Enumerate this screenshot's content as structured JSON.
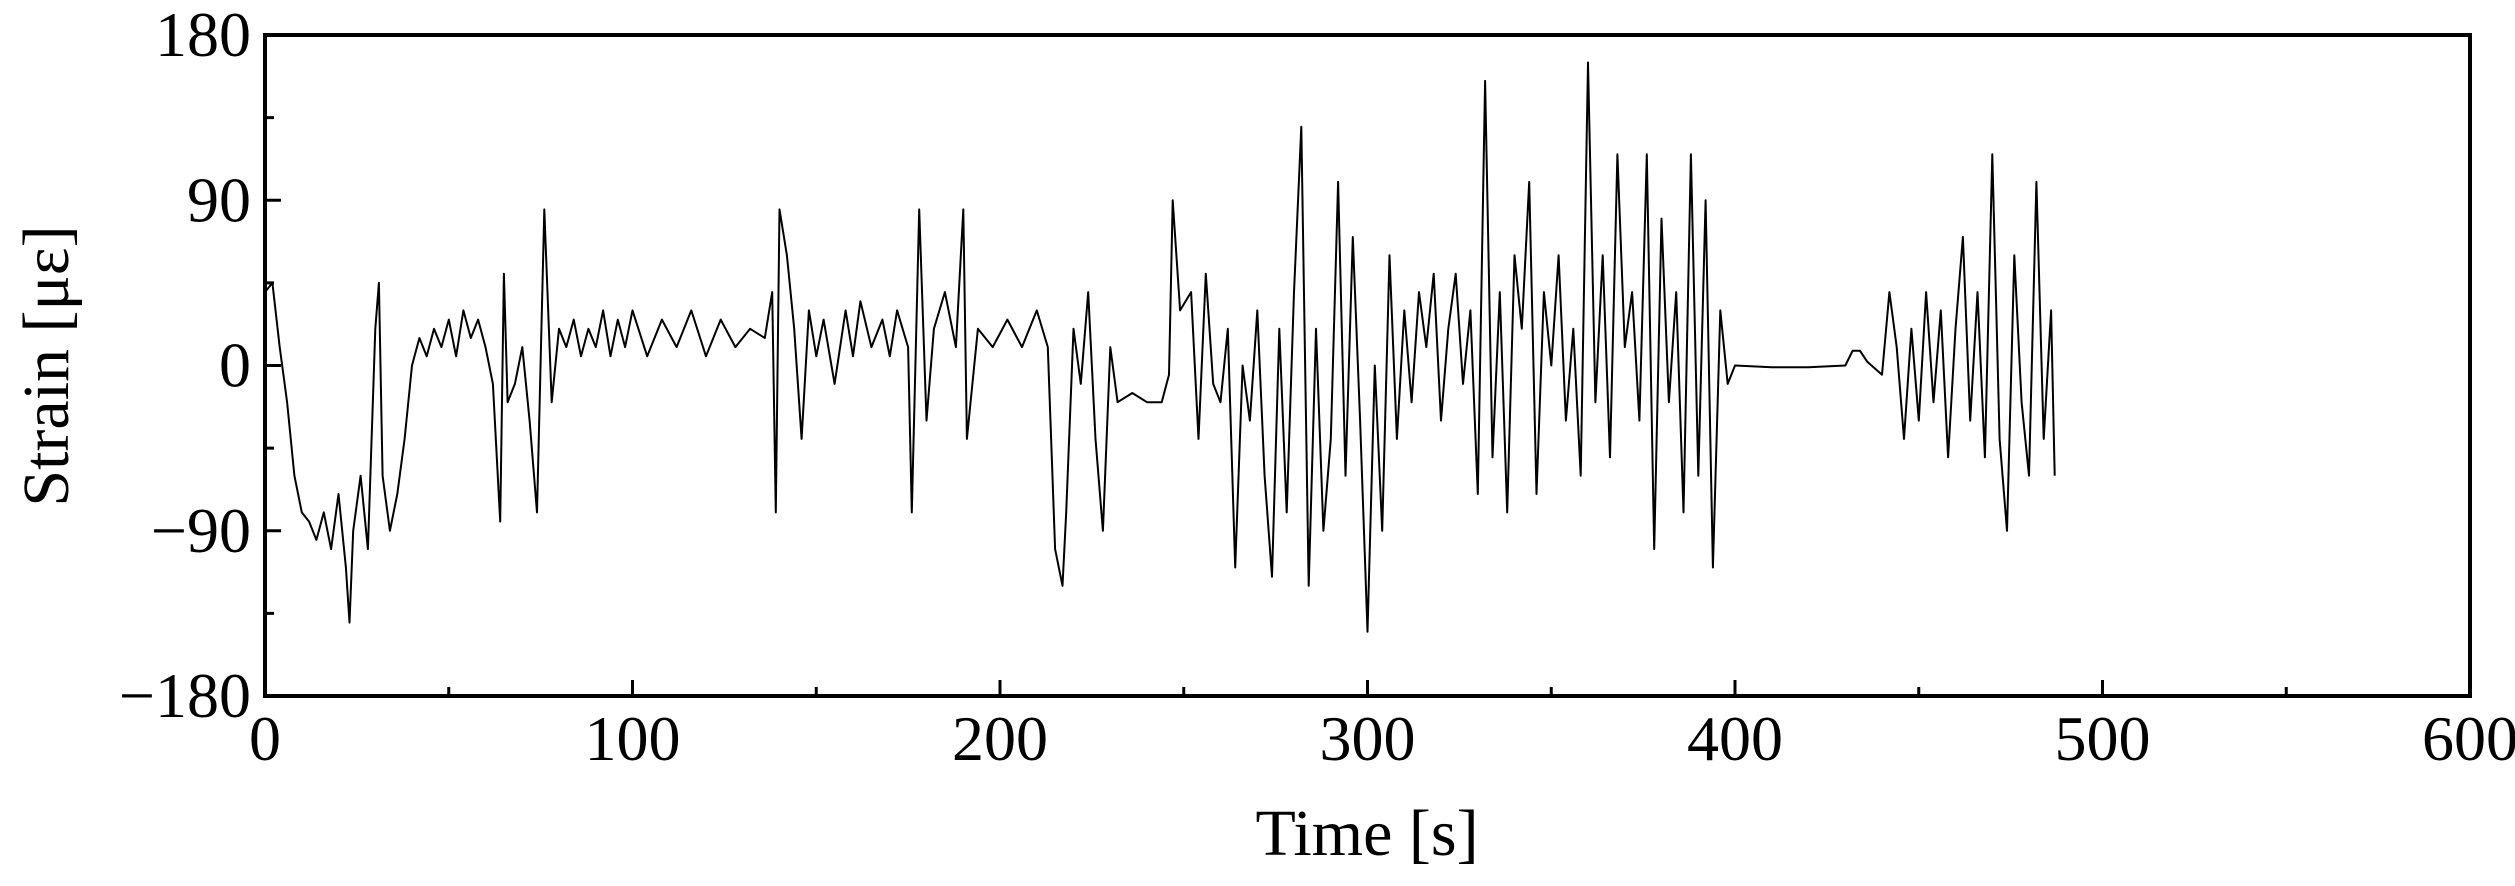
{
  "chart_data": {
    "type": "line",
    "xlabel": "Time [s]",
    "ylabel": "Strain [με]",
    "xlim": [
      0,
      600
    ],
    "xticks": [
      0,
      100,
      200,
      300,
      400,
      500,
      600
    ],
    "ylim": [
      -180,
      180
    ],
    "yticks": [
      {
        "value": -180,
        "label": "−180"
      },
      {
        "value": -90,
        "label": "−90"
      },
      0,
      90,
      180
    ],
    "grid": false,
    "x": [
      0,
      2,
      4,
      6,
      8,
      10,
      12,
      14,
      16,
      18,
      20,
      22,
      23,
      24,
      26,
      28,
      30,
      31,
      32,
      34,
      36,
      38,
      40,
      42,
      44,
      46,
      48,
      50,
      52,
      54,
      56,
      58,
      60,
      62,
      64,
      65,
      66,
      68,
      70,
      72,
      74,
      76,
      78,
      80,
      82,
      84,
      86,
      88,
      90,
      92,
      94,
      96,
      98,
      100,
      104,
      108,
      112,
      116,
      120,
      124,
      128,
      132,
      136,
      138,
      139,
      140,
      142,
      144,
      146,
      148,
      150,
      152,
      155,
      158,
      160,
      162,
      165,
      168,
      170,
      172,
      175,
      176,
      178,
      180,
      182,
      185,
      188,
      190,
      191,
      194,
      198,
      202,
      206,
      210,
      213,
      215,
      217,
      218,
      220,
      222,
      224,
      226,
      228,
      230,
      232,
      236,
      240,
      244,
      246,
      247,
      249,
      252,
      254,
      256,
      258,
      260,
      262,
      264,
      266,
      268,
      270,
      272,
      274,
      276,
      278,
      280,
      282,
      284,
      286,
      288,
      290,
      292,
      294,
      296,
      298,
      300,
      302,
      304,
      306,
      308,
      310,
      312,
      314,
      316,
      318,
      320,
      322,
      324,
      326,
      328,
      330,
      332,
      334,
      336,
      338,
      340,
      342,
      344,
      346,
      348,
      350,
      352,
      354,
      356,
      358,
      360,
      362,
      364,
      366,
      368,
      370,
      372,
      374,
      376,
      378,
      380,
      382,
      384,
      386,
      388,
      390,
      392,
      394,
      396,
      398,
      400,
      410,
      420,
      430,
      432,
      434,
      436,
      440,
      442,
      444,
      446,
      448,
      450,
      452,
      454,
      456,
      458,
      460,
      462,
      464,
      466,
      468,
      470,
      472,
      474,
      476,
      478,
      480,
      482,
      484,
      486,
      487
    ],
    "series": [
      {
        "name": "Strain",
        "color": "#000000",
        "values": [
          40,
          45,
          10,
          -20,
          -60,
          -80,
          -85,
          -95,
          -80,
          -100,
          -70,
          -110,
          -140,
          -90,
          -60,
          -100,
          20,
          45,
          -60,
          -90,
          -70,
          -40,
          0,
          15,
          5,
          20,
          10,
          25,
          5,
          30,
          15,
          25,
          10,
          -10,
          -85,
          50,
          -20,
          -10,
          10,
          -30,
          -80,
          85,
          -20,
          20,
          10,
          25,
          5,
          20,
          10,
          30,
          5,
          25,
          10,
          30,
          5,
          25,
          10,
          30,
          5,
          25,
          10,
          20,
          15,
          40,
          -80,
          85,
          60,
          20,
          -40,
          30,
          5,
          25,
          -10,
          30,
          5,
          35,
          10,
          25,
          5,
          30,
          10,
          -80,
          85,
          -30,
          20,
          40,
          10,
          85,
          -40,
          20,
          10,
          25,
          10,
          30,
          10,
          -100,
          -120,
          -80,
          20,
          -10,
          40,
          -40,
          -90,
          10,
          -20,
          -15,
          -20,
          -20,
          -5,
          90,
          30,
          40,
          -40,
          50,
          -10,
          -20,
          20,
          -110,
          0,
          -30,
          30,
          -60,
          -115,
          20,
          -80,
          40,
          130,
          -120,
          20,
          -90,
          -40,
          100,
          -60,
          70,
          -30,
          -145,
          0,
          -90,
          60,
          -40,
          30,
          -20,
          40,
          10,
          50,
          -30,
          20,
          50,
          -10,
          30,
          -70,
          155,
          -50,
          40,
          -80,
          60,
          20,
          100,
          -70,
          40,
          0,
          60,
          -30,
          20,
          -60,
          165,
          -20,
          60,
          -50,
          115,
          10,
          40,
          -30,
          115,
          -100,
          80,
          -20,
          40,
          -80,
          115,
          -60,
          90,
          -110,
          30,
          -10,
          0,
          -1,
          -1,
          0,
          8,
          8,
          2,
          -5,
          40,
          10,
          -40,
          20,
          -30,
          40,
          -20,
          30,
          -50,
          20,
          70,
          -30,
          40,
          -50,
          115,
          -40,
          -90,
          60,
          -20,
          -60,
          100,
          -40,
          30,
          -60
        ]
      }
    ]
  }
}
